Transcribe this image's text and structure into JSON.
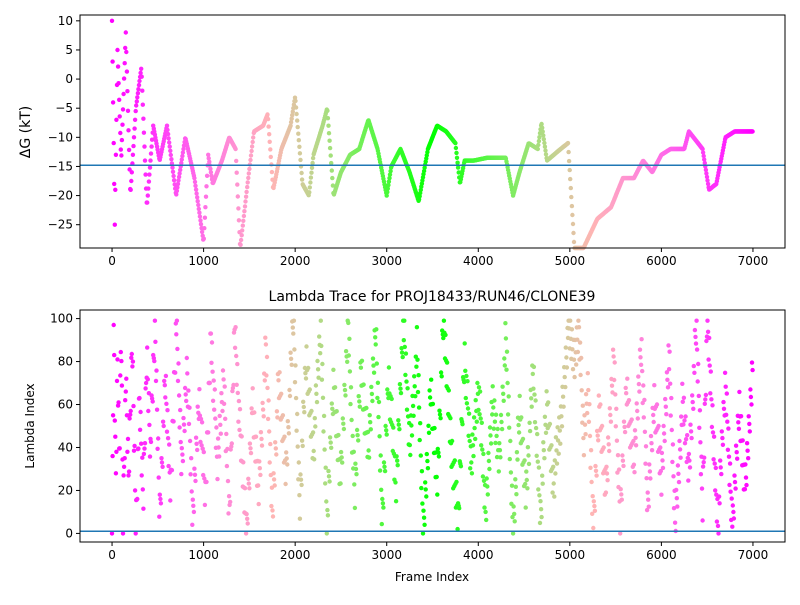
{
  "chart_data": [
    {
      "type": "scatter",
      "title": "",
      "xlabel": "",
      "ylabel": "ΔG (kT)",
      "xlim": [
        -350,
        7350
      ],
      "ylim": [
        -29,
        11
      ],
      "xticks": [
        0,
        1000,
        2000,
        3000,
        4000,
        5000,
        6000,
        7000
      ],
      "yticks": [
        -25,
        -20,
        -15,
        -10,
        -5,
        0,
        5,
        10
      ],
      "xtick_labels": [
        "0",
        "1000",
        "2000",
        "3000",
        "4000",
        "5000",
        "6000",
        "7000"
      ],
      "ytick_labels": [
        "−25",
        "−20",
        "−15",
        "−10",
        "−5",
        "0",
        "5",
        "10"
      ],
      "hline": -14.8,
      "hline_color": "#1f77b4",
      "colormap": "rainbow (red at frame 0 → violet at frame 7000)",
      "trace_keypoints": [
        [
          0,
          10
        ],
        [
          30,
          -25
        ],
        [
          60,
          5
        ],
        [
          100,
          -14
        ],
        [
          150,
          8
        ],
        [
          200,
          -20
        ],
        [
          260,
          -5
        ],
        [
          320,
          2
        ],
        [
          380,
          -22
        ],
        [
          450,
          -8
        ],
        [
          520,
          -14
        ],
        [
          600,
          -8
        ],
        [
          700,
          -20
        ],
        [
          800,
          -10
        ],
        [
          900,
          -17
        ],
        [
          1000,
          -28
        ],
        [
          1050,
          -13
        ],
        [
          1100,
          -18
        ],
        [
          1200,
          -14
        ],
        [
          1280,
          -10
        ],
        [
          1350,
          -12
        ],
        [
          1400,
          -29
        ],
        [
          1480,
          -18
        ],
        [
          1550,
          -9
        ],
        [
          1650,
          -8
        ],
        [
          1700,
          -6
        ],
        [
          1760,
          -19
        ],
        [
          1850,
          -12
        ],
        [
          1950,
          -8
        ],
        [
          2000,
          -3
        ],
        [
          2080,
          -18
        ],
        [
          2150,
          -20
        ],
        [
          2200,
          -13
        ],
        [
          2300,
          -8
        ],
        [
          2350,
          -5
        ],
        [
          2420,
          -20
        ],
        [
          2500,
          -16
        ],
        [
          2600,
          -13
        ],
        [
          2700,
          -12
        ],
        [
          2800,
          -7
        ],
        [
          2900,
          -12
        ],
        [
          3000,
          -20
        ],
        [
          3050,
          -15
        ],
        [
          3150,
          -12
        ],
        [
          3250,
          -16
        ],
        [
          3350,
          -21
        ],
        [
          3450,
          -12
        ],
        [
          3550,
          -8
        ],
        [
          3650,
          -9
        ],
        [
          3750,
          -11
        ],
        [
          3800,
          -18
        ],
        [
          3850,
          -14
        ],
        [
          3950,
          -14
        ],
        [
          4100,
          -13.5
        ],
        [
          4300,
          -13.5
        ],
        [
          4380,
          -20
        ],
        [
          4450,
          -16
        ],
        [
          4550,
          -11
        ],
        [
          4650,
          -12
        ],
        [
          4690,
          -7.5
        ],
        [
          4750,
          -14
        ],
        [
          4900,
          -12
        ],
        [
          4980,
          -11
        ],
        [
          5050,
          -29
        ],
        [
          5150,
          -29
        ],
        [
          5300,
          -24
        ],
        [
          5450,
          -22
        ],
        [
          5580,
          -17
        ],
        [
          5700,
          -17
        ],
        [
          5800,
          -14
        ],
        [
          5900,
          -16
        ],
        [
          6000,
          -13
        ],
        [
          6100,
          -12
        ],
        [
          6250,
          -12
        ],
        [
          6300,
          -9
        ],
        [
          6450,
          -12
        ],
        [
          6520,
          -19
        ],
        [
          6600,
          -18
        ],
        [
          6700,
          -10
        ],
        [
          6800,
          -9
        ],
        [
          7000,
          -9
        ]
      ]
    },
    {
      "type": "scatter",
      "title": "Lambda Trace for PROJ18433/RUN46/CLONE39",
      "xlabel": "Frame Index",
      "ylabel": "Lambda Index",
      "xlim": [
        -350,
        7350
      ],
      "ylim": [
        -4,
        104
      ],
      "xticks": [
        0,
        1000,
        2000,
        3000,
        4000,
        5000,
        6000,
        7000
      ],
      "yticks": [
        0,
        20,
        40,
        60,
        80,
        100
      ],
      "xtick_labels": [
        "0",
        "1000",
        "2000",
        "3000",
        "4000",
        "5000",
        "6000",
        "7000"
      ],
      "ytick_labels": [
        "0",
        "20",
        "40",
        "60",
        "80",
        "100"
      ],
      "hline": 1,
      "hline_color": "#1f77b4",
      "colormap": "rainbow (red at frame 0 → violet at frame 7000)",
      "trace_keypoints": [
        [
          0,
          5
        ],
        [
          20,
          95
        ],
        [
          40,
          20
        ],
        [
          60,
          80
        ],
        [
          80,
          35
        ],
        [
          100,
          98
        ],
        [
          120,
          10
        ],
        [
          150,
          70
        ],
        [
          180,
          25
        ],
        [
          220,
          90
        ],
        [
          260,
          5
        ],
        [
          300,
          60
        ],
        [
          340,
          15
        ],
        [
          380,
          85
        ],
        [
          420,
          40
        ],
        [
          470,
          95
        ],
        [
          520,
          10
        ],
        [
          580,
          70
        ],
        [
          640,
          20
        ],
        [
          700,
          99
        ],
        [
          760,
          30
        ],
        [
          820,
          80
        ],
        [
          880,
          5
        ],
        [
          950,
          65
        ],
        [
          1020,
          15
        ],
        [
          1080,
          95
        ],
        [
          1150,
          30
        ],
        [
          1220,
          75
        ],
        [
          1280,
          5
        ],
        [
          1340,
          99
        ],
        [
          1400,
          45
        ],
        [
          1470,
          2
        ],
        [
          1530,
          60
        ],
        [
          1600,
          20
        ],
        [
          1680,
          85
        ],
        [
          1750,
          10
        ],
        [
          1820,
          70
        ],
        [
          1900,
          30
        ],
        [
          1980,
          99
        ],
        [
          2050,
          15
        ],
        [
          2120,
          80
        ],
        [
          2200,
          40
        ],
        [
          2280,
          95
        ],
        [
          2350,
          5
        ],
        [
          2420,
          70
        ],
        [
          2500,
          25
        ],
        [
          2580,
          99
        ],
        [
          2650,
          15
        ],
        [
          2720,
          80
        ],
        [
          2800,
          35
        ],
        [
          2880,
          98
        ],
        [
          2950,
          5
        ],
        [
          3020,
          75
        ],
        [
          3100,
          20
        ],
        [
          3180,
          99
        ],
        [
          3250,
          40
        ],
        [
          3330,
          85
        ],
        [
          3400,
          2
        ],
        [
          3480,
          65
        ],
        [
          3550,
          25
        ],
        [
          3620,
          98
        ],
        [
          3700,
          45
        ],
        [
          3780,
          5
        ],
        [
          3850,
          85
        ],
        [
          3920,
          30
        ],
        [
          4000,
          70
        ],
        [
          4080,
          10
        ],
        [
          4150,
          60
        ],
        [
          4230,
          35
        ],
        [
          4300,
          90
        ],
        [
          4380,
          2
        ],
        [
          4450,
          55
        ],
        [
          4520,
          20
        ],
        [
          4600,
          75
        ],
        [
          4680,
          10
        ],
        [
          4750,
          60
        ],
        [
          4820,
          25
        ],
        [
          4900,
          50
        ],
        [
          4980,
          95
        ],
        [
          5050,
          80
        ],
        [
          5100,
          99
        ],
        [
          5150,
          40
        ],
        [
          5200,
          70
        ],
        [
          5260,
          2
        ],
        [
          5320,
          60
        ],
        [
          5400,
          20
        ],
        [
          5480,
          85
        ],
        [
          5550,
          5
        ],
        [
          5620,
          70
        ],
        [
          5700,
          30
        ],
        [
          5780,
          90
        ],
        [
          5850,
          10
        ],
        [
          5920,
          65
        ],
        [
          6000,
          25
        ],
        [
          6080,
          85
        ],
        [
          6150,
          5
        ],
        [
          6230,
          60
        ],
        [
          6300,
          30
        ],
        [
          6380,
          95
        ],
        [
          6450,
          15
        ],
        [
          6500,
          99
        ],
        [
          6560,
          50
        ],
        [
          6620,
          5
        ],
        [
          6700,
          70
        ],
        [
          6780,
          2
        ],
        [
          6850,
          60
        ],
        [
          6920,
          20
        ],
        [
          7000,
          80
        ]
      ]
    }
  ]
}
